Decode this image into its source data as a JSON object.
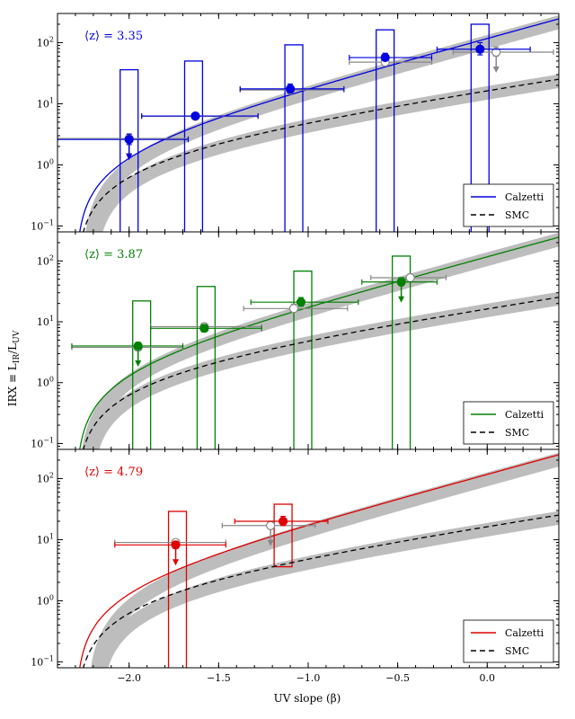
{
  "chart_data": {
    "type": "scatter",
    "layout": "three vertically stacked panels sharing the x axis",
    "xlabel": "UV slope (β)",
    "ylabel": "IRX ≡ L_IR/L_UV",
    "ylabel_main": "IRX ≡ L",
    "ylabel_sub1": "IR",
    "ylabel_mid": "/L",
    "ylabel_sub2": "UV",
    "xlim": [
      -2.4,
      0.4
    ],
    "ylim": [
      0.08,
      300
    ],
    "yscale": "log",
    "x_ticks": [
      -2.0,
      -1.5,
      -1.0,
      -0.5,
      0.0
    ],
    "x_tick_labels": [
      "−2.0",
      "−1.5",
      "−1.0",
      "−0.5",
      "0.0"
    ],
    "y_ticks": [
      0.1,
      1,
      10,
      100
    ],
    "y_tick_labels": [
      {
        "base": "10",
        "exp": "−1"
      },
      {
        "base": "10",
        "exp": "0"
      },
      {
        "base": "10",
        "exp": "1"
      },
      {
        "base": "10",
        "exp": "2"
      }
    ],
    "legend": {
      "position": "lower-right",
      "entries": [
        "Calzetti",
        "SMC"
      ]
    },
    "curves": [
      {
        "name": "Calzetti",
        "style": "solid",
        "beta0": -2.3,
        "slope": 1.99,
        "scale": 1.75
      },
      {
        "name": "SMC",
        "style": "dashed",
        "beta0": -2.3,
        "slope": 1.1,
        "scale": 1.75
      }
    ],
    "panels": [
      {
        "z_prefix": "⟨z⟩ = ",
        "z_value": "3.35",
        "color": "#0000e0",
        "band_beta0": -2.23,
        "histogram": [
          {
            "x_min": -2.05,
            "x_max": -1.95,
            "height": 36
          },
          {
            "x_min": -1.69,
            "x_max": -1.59,
            "height": 50
          },
          {
            "x_min": -1.13,
            "x_max": -1.03,
            "height": 92
          },
          {
            "x_min": -0.62,
            "x_max": -0.52,
            "height": 162
          },
          {
            "x_min": -0.09,
            "x_max": 0.01,
            "height": 200
          }
        ],
        "measured": [
          {
            "x": -2.0,
            "y": 2.6,
            "xerr": [
              0.4,
              0.33
            ],
            "yerr": [
              0.45,
              0.6
            ],
            "arrow": true
          },
          {
            "x": -1.63,
            "y": 6.3,
            "xerr": [
              0.3,
              0.35
            ],
            "yerr": [
              0.7,
              0.8
            ],
            "arrow": false
          },
          {
            "x": -1.1,
            "y": 17.5,
            "xerr": [
              0.28,
              0.3
            ],
            "yerr": [
              2.5,
              3.5
            ],
            "arrow": false
          },
          {
            "x": -0.57,
            "y": 57,
            "xerr": [
              0.2,
              0.26
            ],
            "yerr": [
              6,
              10
            ],
            "arrow": false
          },
          {
            "x": -0.04,
            "y": 78,
            "xerr": [
              0.24,
              0.28
            ],
            "yerr": [
              15,
              22
            ],
            "arrow": false
          }
        ],
        "stacked": [
          {
            "x": -2.0,
            "y": 2.7,
            "xerr": [
              0.4,
              0.33
            ],
            "yerr": [
              0.3,
              0.4
            ],
            "arrow": true
          },
          {
            "x": -1.63,
            "y": 6.2,
            "xerr": [
              0.3,
              0.35
            ],
            "yerr": [
              0.5,
              0.6
            ],
            "arrow": false
          },
          {
            "x": -1.1,
            "y": 16.8,
            "xerr": [
              0.28,
              0.3
            ],
            "yerr": [
              2,
              3
            ],
            "arrow": false
          },
          {
            "x": -0.57,
            "y": 48,
            "xerr": [
              0.2,
              0.26
            ],
            "yerr": [
              5,
              8
            ],
            "arrow": false
          },
          {
            "x": 0.05,
            "y": 70,
            "xerr": [
              0.24,
              0.32
            ],
            "yerr": [
              10,
              15
            ],
            "arrow": true
          }
        ]
      },
      {
        "z_prefix": "⟨z⟩ = ",
        "z_value": "3.87",
        "color": "#008000",
        "band_beta0": -2.25,
        "histogram": [
          {
            "x_min": -1.98,
            "x_max": -1.88,
            "height": 22
          },
          {
            "x_min": -1.62,
            "x_max": -1.52,
            "height": 38
          },
          {
            "x_min": -1.08,
            "x_max": -0.98,
            "height": 68
          },
          {
            "x_min": -0.53,
            "x_max": -0.43,
            "height": 120
          }
        ],
        "measured": [
          {
            "x": -1.95,
            "y": 4.0,
            "xerr": [
              0.37,
              0.25
            ],
            "yerr": [
              0.5,
              0.6
            ],
            "arrow": true
          },
          {
            "x": -1.58,
            "y": 7.8,
            "xerr": [
              0.3,
              0.32
            ],
            "yerr": [
              1.0,
              1.2
            ],
            "arrow": false
          },
          {
            "x": -1.04,
            "y": 21,
            "xerr": [
              0.28,
              0.32
            ],
            "yerr": [
              3,
              4
            ],
            "arrow": false
          },
          {
            "x": -0.48,
            "y": 45,
            "xerr": [
              0.22,
              0.2
            ],
            "yerr": [
              6,
              8
            ],
            "arrow": true
          }
        ],
        "stacked": [
          {
            "x": -1.95,
            "y": 3.8,
            "xerr": [
              0.37,
              0.25
            ],
            "yerr": [
              0.4,
              0.5
            ],
            "arrow": false
          },
          {
            "x": -1.58,
            "y": 8.3,
            "xerr": [
              0.3,
              0.32
            ],
            "yerr": [
              0.8,
              1.0
            ],
            "arrow": false
          },
          {
            "x": -1.08,
            "y": 16.5,
            "xerr": [
              0.28,
              0.3
            ],
            "yerr": [
              2,
              3
            ],
            "arrow": false
          },
          {
            "x": -0.43,
            "y": 53,
            "xerr": [
              0.22,
              0.2
            ],
            "yerr": [
              6,
              8
            ],
            "arrow": false
          }
        ]
      },
      {
        "z_prefix": "⟨z⟩ = ",
        "z_value": "4.79",
        "color": "#e00000",
        "band_beta0": -2.2,
        "histogram": [
          {
            "x_min": -1.78,
            "x_max": -1.68,
            "height": 29
          },
          {
            "x_min": -1.19,
            "x_max": -1.09,
            "height": 38,
            "y_min": 3.6
          }
        ],
        "measured": [
          {
            "x": -1.74,
            "y": 8.2,
            "xerr": [
              0.34,
              0.28
            ],
            "yerr": [
              1.0,
              1.2
            ],
            "arrow": true
          },
          {
            "x": -1.14,
            "y": 20,
            "xerr": [
              0.27,
              0.25
            ],
            "yerr": [
              3,
              4
            ],
            "arrow": false
          }
        ],
        "stacked": [
          {
            "x": -1.74,
            "y": 9.0,
            "xerr": [
              0.34,
              0.28
            ],
            "yerr": [
              0.8,
              1.0
            ],
            "arrow": false
          },
          {
            "x": -1.21,
            "y": 17,
            "xerr": [
              0.27,
              0.25
            ],
            "yerr": [
              2,
              3
            ],
            "arrow": true
          }
        ]
      }
    ]
  }
}
